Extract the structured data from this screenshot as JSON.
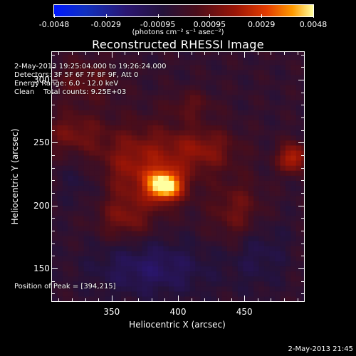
{
  "colorbar": {
    "labels": [
      "-0.0048",
      "-0.0029",
      "-0.00095",
      "0.00095",
      "0.0029",
      "0.0048"
    ],
    "units": "(photons cm⁻² s⁻¹ asec⁻²)"
  },
  "title": "Reconstructed RHESSI Image",
  "info": {
    "time": "2-May-2013 19:25:04.000 to 19:26:24.000",
    "detectors": "Detectors: 3F 5F 6F 7F 8F 9F, Att 0",
    "energy": "Energy Range: 6.0 - 12.0 keV",
    "clean": "Clean    Total counts: 9.25E+03",
    "peak": "Position of Peak = [394,215]"
  },
  "timestamp": "2-May-2013 21:45",
  "chart_data": {
    "type": "heatmap",
    "title": "Reconstructed RHESSI Image",
    "xlabel": "Heliocentric X (arcsec)",
    "ylabel": "Heliocentric Y (arcsec)",
    "xlim": [
      305,
      495
    ],
    "ylim": [
      124,
      322
    ],
    "xticks": [
      350,
      400,
      450
    ],
    "yticks": [
      150,
      200,
      250,
      300
    ],
    "colorbar_range": [
      -0.0048,
      0.0048
    ],
    "colormap": [
      "#0018ff",
      "#1030c0",
      "#2a1670",
      "#24123a",
      "#4a0d1a",
      "#9a1506",
      "#e43c00",
      "#ff9a00",
      "#ffffa0"
    ],
    "peak_position": [
      394,
      215
    ],
    "sources": [
      {
        "x": 390,
        "y": 216,
        "sigma_x": 9,
        "sigma_y": 8,
        "amp": 0.0048
      },
      {
        "x": 372,
        "y": 232,
        "sigma_x": 26,
        "sigma_y": 22,
        "amp": 0.0022
      },
      {
        "x": 420,
        "y": 245,
        "sigma_x": 18,
        "sigma_y": 12,
        "amp": 0.0016
      },
      {
        "x": 487,
        "y": 238,
        "sigma_x": 8,
        "sigma_y": 8,
        "amp": 0.0028
      },
      {
        "x": 320,
        "y": 258,
        "sigma_x": 15,
        "sigma_y": 12,
        "amp": 0.0014
      },
      {
        "x": 445,
        "y": 195,
        "sigma_x": 14,
        "sigma_y": 18,
        "amp": 0.0015
      },
      {
        "x": 360,
        "y": 190,
        "sigma_x": 14,
        "sigma_y": 12,
        "amp": 0.0014
      },
      {
        "x": 330,
        "y": 300,
        "sigma_x": 16,
        "sigma_y": 12,
        "amp": 0.0012
      },
      {
        "x": 410,
        "y": 280,
        "sigma_x": 12,
        "sigma_y": 8,
        "amp": 0.001
      },
      {
        "x": 380,
        "y": 150,
        "sigma_x": 30,
        "sigma_y": 15,
        "amp": -0.0014
      },
      {
        "x": 460,
        "y": 165,
        "sigma_x": 15,
        "sigma_y": 20,
        "amp": -0.0009
      },
      {
        "x": 330,
        "y": 220,
        "sigma_x": 14,
        "sigma_y": 15,
        "amp": -0.0008
      }
    ]
  }
}
